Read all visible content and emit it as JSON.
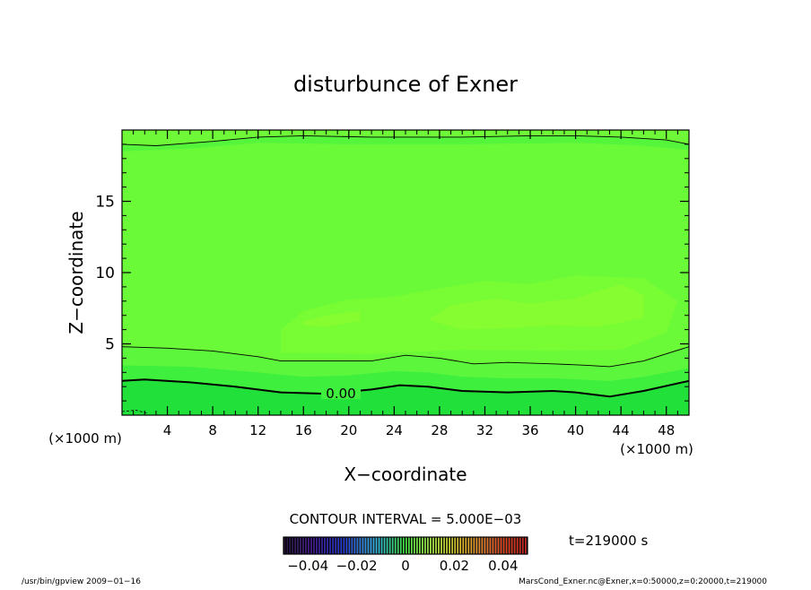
{
  "chart_data": {
    "type": "heatmap",
    "title": "disturbunce of Exner",
    "xlabel": "X−coordinate",
    "ylabel": "Z−coordinate",
    "x_unit": "(×1000 m)",
    "xlim": [
      0,
      50
    ],
    "ylim": [
      0,
      20
    ],
    "x_ticks": [
      4,
      8,
      12,
      16,
      20,
      24,
      28,
      32,
      36,
      40,
      44,
      48
    ],
    "y_ticks": [
      5,
      10,
      15
    ],
    "contour_interval_label": "CONTOUR INTERVAL = 5.000E−03",
    "time_label": "t=219000 s",
    "colorbar": {
      "min": -0.05,
      "max": 0.05,
      "tick_labels": [
        "−0.04",
        "−0.02",
        "0",
        "0.02",
        "0.04"
      ],
      "tick_values": [
        -0.04,
        -0.02,
        0,
        0.02,
        0.04
      ]
    },
    "contours": [
      {
        "label": "0.00",
        "label_at": [
          17.8,
          1.5
        ],
        "bold": true,
        "points": [
          [
            0,
            2.4
          ],
          [
            2,
            2.5
          ],
          [
            6,
            2.3
          ],
          [
            10,
            2.0
          ],
          [
            14,
            1.6
          ],
          [
            18,
            1.5
          ],
          [
            22,
            1.8
          ],
          [
            24.5,
            2.1
          ],
          [
            27,
            2.0
          ],
          [
            30,
            1.7
          ],
          [
            34,
            1.6
          ],
          [
            38,
            1.7
          ],
          [
            40,
            1.6
          ],
          [
            43,
            1.3
          ],
          [
            46,
            1.7
          ],
          [
            50,
            2.4
          ]
        ]
      },
      {
        "label": "",
        "bold": false,
        "points": [
          [
            0,
            4.8
          ],
          [
            4,
            4.7
          ],
          [
            8,
            4.5
          ],
          [
            12,
            4.1
          ],
          [
            14,
            3.8
          ],
          [
            18,
            3.8
          ],
          [
            22,
            3.8
          ],
          [
            25,
            4.2
          ],
          [
            28,
            4.0
          ],
          [
            31,
            3.6
          ],
          [
            34,
            3.7
          ],
          [
            38,
            3.6
          ],
          [
            41,
            3.5
          ],
          [
            43,
            3.4
          ],
          [
            46,
            3.8
          ],
          [
            50,
            4.8
          ]
        ]
      },
      {
        "label": "",
        "bold": false,
        "points": [
          [
            0,
            19.0
          ],
          [
            3,
            18.9
          ],
          [
            8,
            19.2
          ],
          [
            12,
            19.5
          ],
          [
            16,
            19.6
          ],
          [
            22,
            19.5
          ],
          [
            26,
            19.5
          ],
          [
            30,
            19.5
          ],
          [
            36,
            19.6
          ],
          [
            40,
            19.6
          ],
          [
            44,
            19.5
          ],
          [
            48,
            19.3
          ],
          [
            50,
            19.0
          ]
        ]
      }
    ],
    "bands": [
      {
        "color": "#22e03a",
        "points": [
          [
            0,
            0
          ],
          [
            50,
            0
          ],
          [
            50,
            2.4
          ],
          [
            46,
            1.7
          ],
          [
            43,
            1.3
          ],
          [
            40,
            1.6
          ],
          [
            38,
            1.7
          ],
          [
            34,
            1.6
          ],
          [
            30,
            1.7
          ],
          [
            27,
            2.0
          ],
          [
            24.5,
            2.1
          ],
          [
            22,
            1.8
          ],
          [
            18,
            1.5
          ],
          [
            14,
            1.6
          ],
          [
            10,
            2.0
          ],
          [
            6,
            2.3
          ],
          [
            2,
            2.5
          ],
          [
            0,
            2.4
          ]
        ]
      },
      {
        "color": "#3eef3e",
        "points": [
          [
            0,
            2.4
          ],
          [
            2,
            2.5
          ],
          [
            6,
            2.3
          ],
          [
            10,
            2.0
          ],
          [
            14,
            1.6
          ],
          [
            18,
            1.5
          ],
          [
            22,
            1.8
          ],
          [
            24.5,
            2.1
          ],
          [
            27,
            2.0
          ],
          [
            30,
            1.7
          ],
          [
            34,
            1.6
          ],
          [
            38,
            1.7
          ],
          [
            40,
            1.6
          ],
          [
            43,
            1.3
          ],
          [
            46,
            1.7
          ],
          [
            50,
            2.4
          ],
          [
            50,
            3.3
          ],
          [
            46,
            2.7
          ],
          [
            43,
            2.4
          ],
          [
            38,
            2.6
          ],
          [
            34,
            2.6
          ],
          [
            30,
            2.7
          ],
          [
            27,
            3.0
          ],
          [
            24,
            3.1
          ],
          [
            20,
            2.8
          ],
          [
            16,
            2.7
          ],
          [
            12,
            3.0
          ],
          [
            6,
            3.4
          ],
          [
            0,
            3.5
          ]
        ]
      },
      {
        "color": "#5cf73c",
        "points": [
          [
            0,
            3.5
          ],
          [
            6,
            3.4
          ],
          [
            12,
            3.0
          ],
          [
            16,
            2.7
          ],
          [
            20,
            2.8
          ],
          [
            24,
            3.1
          ],
          [
            27,
            3.0
          ],
          [
            30,
            2.7
          ],
          [
            34,
            2.6
          ],
          [
            38,
            2.6
          ],
          [
            43,
            2.4
          ],
          [
            46,
            2.7
          ],
          [
            50,
            3.3
          ],
          [
            50,
            4.8
          ],
          [
            46,
            3.8
          ],
          [
            43,
            3.4
          ],
          [
            41,
            3.5
          ],
          [
            38,
            3.6
          ],
          [
            34,
            3.7
          ],
          [
            31,
            3.6
          ],
          [
            28,
            4.0
          ],
          [
            25,
            4.2
          ],
          [
            22,
            3.8
          ],
          [
            18,
            3.8
          ],
          [
            14,
            3.8
          ],
          [
            12,
            4.1
          ],
          [
            8,
            4.5
          ],
          [
            4,
            4.7
          ],
          [
            0,
            4.8
          ]
        ]
      },
      {
        "color": "#6bfa38",
        "points": [
          [
            0,
            4.8
          ],
          [
            4,
            4.7
          ],
          [
            8,
            4.5
          ],
          [
            12,
            4.1
          ],
          [
            14,
            3.8
          ],
          [
            18,
            3.8
          ],
          [
            22,
            3.8
          ],
          [
            25,
            4.2
          ],
          [
            28,
            4.0
          ],
          [
            31,
            3.6
          ],
          [
            34,
            3.7
          ],
          [
            38,
            3.6
          ],
          [
            41,
            3.5
          ],
          [
            43,
            3.4
          ],
          [
            46,
            3.8
          ],
          [
            50,
            4.8
          ],
          [
            50,
            19.0
          ],
          [
            0,
            19.0
          ]
        ]
      },
      {
        "color": "#78fc34",
        "points": [
          [
            14,
            4.4
          ],
          [
            22,
            4.3
          ],
          [
            30,
            4.6
          ],
          [
            38,
            4.5
          ],
          [
            44,
            4.6
          ],
          [
            48,
            5.8
          ],
          [
            49,
            8.0
          ],
          [
            46,
            9.6
          ],
          [
            40,
            9.8
          ],
          [
            36,
            9.2
          ],
          [
            32,
            9.4
          ],
          [
            28,
            8.9
          ],
          [
            24,
            8.3
          ],
          [
            20,
            8.1
          ],
          [
            16,
            7.3
          ],
          [
            14,
            6.0
          ]
        ]
      },
      {
        "color": "#86fd30",
        "points": [
          [
            16,
            6.6
          ],
          [
            18,
            7.0
          ],
          [
            21,
            7.3
          ],
          [
            21,
            6.6
          ],
          [
            18,
            6.2
          ],
          [
            16,
            6.3
          ]
        ]
      },
      {
        "color": "#86fd30",
        "points": [
          [
            27,
            6.7
          ],
          [
            29,
            7.7
          ],
          [
            33,
            8.2
          ],
          [
            36,
            7.8
          ],
          [
            40,
            8.2
          ],
          [
            44,
            9.2
          ],
          [
            46,
            8.4
          ],
          [
            46,
            6.8
          ],
          [
            42,
            6.2
          ],
          [
            38,
            6.3
          ],
          [
            34,
            6.1
          ],
          [
            30,
            6.0
          ]
        ]
      },
      {
        "color": "#6ef838",
        "points": [
          [
            0,
            19.0
          ],
          [
            3,
            18.9
          ],
          [
            8,
            19.2
          ],
          [
            12,
            19.5
          ],
          [
            16,
            19.6
          ],
          [
            22,
            19.5
          ],
          [
            26,
            19.5
          ],
          [
            30,
            19.5
          ],
          [
            36,
            19.6
          ],
          [
            40,
            19.6
          ],
          [
            44,
            19.5
          ],
          [
            48,
            19.3
          ],
          [
            50,
            19.0
          ],
          [
            50,
            20
          ],
          [
            0,
            20
          ]
        ]
      },
      {
        "color": "#55f53c",
        "points": [
          [
            0,
            18.5
          ],
          [
            6,
            18.7
          ],
          [
            12,
            19.1
          ],
          [
            20,
            19.0
          ],
          [
            30,
            19.0
          ],
          [
            40,
            19.1
          ],
          [
            46,
            18.9
          ],
          [
            50,
            18.6
          ],
          [
            50,
            19.0
          ],
          [
            48,
            19.3
          ],
          [
            44,
            19.5
          ],
          [
            40,
            19.6
          ],
          [
            36,
            19.6
          ],
          [
            30,
            19.5
          ],
          [
            26,
            19.5
          ],
          [
            22,
            19.5
          ],
          [
            16,
            19.6
          ],
          [
            12,
            19.5
          ],
          [
            8,
            19.2
          ],
          [
            3,
            18.9
          ],
          [
            0,
            19.0
          ]
        ]
      }
    ]
  },
  "footer": {
    "left": "/usr/bin/gpview   2009−01−16",
    "right": "MarsCond_Exner.nc@Exner,x=0:50000,z=0:20000,t=219000"
  }
}
